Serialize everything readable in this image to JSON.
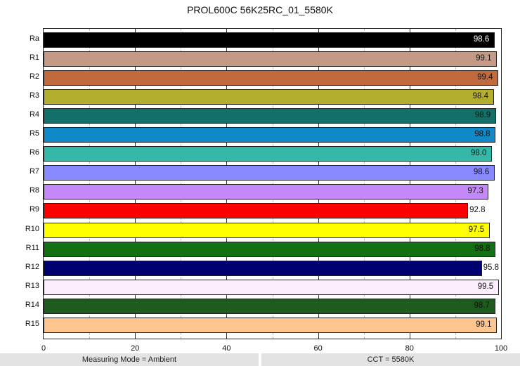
{
  "chart_data": {
    "type": "bar",
    "orientation": "horizontal",
    "title": "PROL600C 56K25RC_01_5580K",
    "xlabel": "",
    "ylabel": "",
    "xlim": [
      0,
      100
    ],
    "xticks": [
      0,
      20,
      40,
      60,
      80,
      100
    ],
    "minor_xticks": [
      10,
      30,
      50,
      70,
      90
    ],
    "grid": true,
    "legend": "none",
    "categories": [
      "Ra",
      "R1",
      "R2",
      "R3",
      "R4",
      "R5",
      "R6",
      "R7",
      "R8",
      "R9",
      "R10",
      "R11",
      "R12",
      "R13",
      "R14",
      "R15"
    ],
    "values": [
      98.6,
      99.1,
      99.4,
      98.4,
      98.9,
      98.8,
      98.0,
      98.6,
      97.3,
      92.8,
      97.5,
      98.8,
      95.8,
      99.5,
      98.7,
      99.1
    ],
    "value_labels": [
      "98.6",
      "99.1",
      "99.4",
      "98.4",
      "98.9",
      "98.8",
      "98.0",
      "98.6",
      "97.3",
      "92.8",
      "97.5",
      "98.8",
      "95.8",
      "99.5",
      "98.7",
      "99.1"
    ],
    "colors": [
      "#000000",
      "#c49a86",
      "#c06a3e",
      "#b4ae2e",
      "#127068",
      "#1188c8",
      "#36b8a8",
      "#8888ff",
      "#c488f8",
      "#ff0000",
      "#ffff00",
      "#137013",
      "#000070",
      "#fdeefd",
      "#1f5a1f",
      "#ffc690"
    ],
    "label_colors": [
      "#ffffff",
      "#111111",
      "#111111",
      "#111111",
      "#111111",
      "#111111",
      "#111111",
      "#111111",
      "#111111",
      "#111111",
      "#111111",
      "#111111",
      "#111111",
      "#111111",
      "#111111",
      "#111111"
    ],
    "label_outside": [
      false,
      false,
      false,
      false,
      false,
      false,
      false,
      false,
      false,
      true,
      false,
      false,
      true,
      false,
      false,
      false
    ]
  },
  "footer": {
    "measuring_mode": "Measuring Mode = Ambient",
    "cct": "CCT = 5580K"
  }
}
